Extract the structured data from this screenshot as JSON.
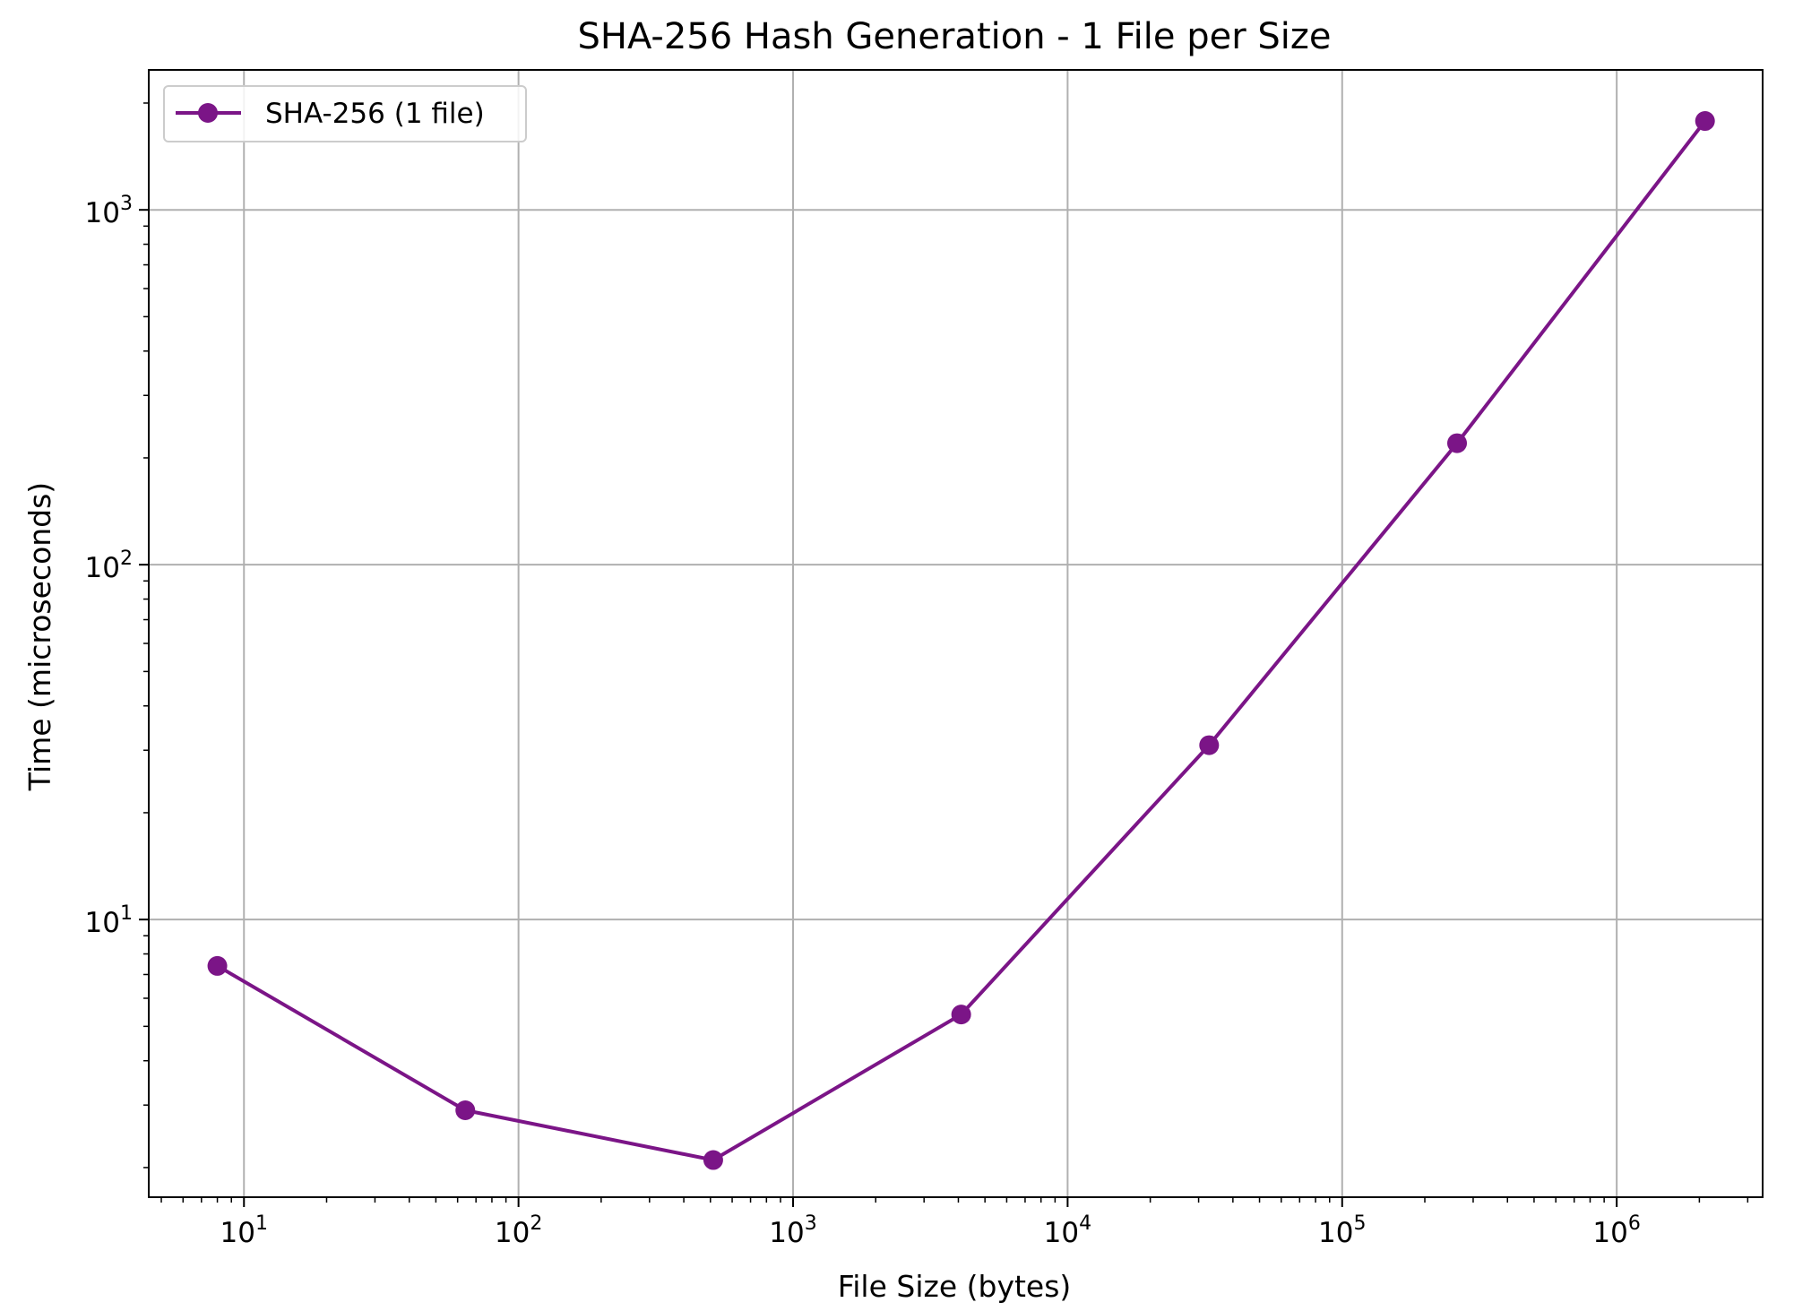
{
  "chart_data": {
    "type": "line",
    "title": "SHA-256 Hash Generation - 1 File per Size",
    "xlabel": "File Size (bytes)",
    "ylabel": "Time (microseconds)",
    "xscale": "log",
    "yscale": "log",
    "xlim": [
      4.5,
      3400000
    ],
    "ylim": [
      1.65,
      2480
    ],
    "grid": true,
    "legend_position": "top-left",
    "x_ticks": [
      {
        "value": 10,
        "base": "10",
        "exp": "1"
      },
      {
        "value": 100,
        "base": "10",
        "exp": "2"
      },
      {
        "value": 1000,
        "base": "10",
        "exp": "3"
      },
      {
        "value": 10000,
        "base": "10",
        "exp": "4"
      },
      {
        "value": 100000,
        "base": "10",
        "exp": "5"
      },
      {
        "value": 1000000,
        "base": "10",
        "exp": "6"
      }
    ],
    "y_ticks": [
      {
        "value": 10,
        "base": "10",
        "exp": "1"
      },
      {
        "value": 100,
        "base": "10",
        "exp": "2"
      },
      {
        "value": 1000,
        "base": "10",
        "exp": "3"
      }
    ],
    "series": [
      {
        "name": "SHA-256 (1 file)",
        "color": "#7b1587",
        "marker": "circle",
        "x": [
          8,
          64,
          512,
          4096,
          32768,
          262144,
          2097152
        ],
        "y": [
          7.4,
          2.9,
          2.1,
          5.4,
          31,
          220,
          1780
        ]
      }
    ]
  }
}
